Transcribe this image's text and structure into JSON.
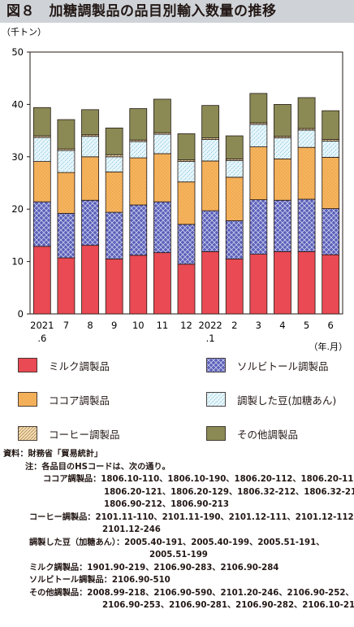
{
  "title": "図８　加糖調製品の品目別輸入数量の推移",
  "unit_label": "（千トン）",
  "x_unit_label": "（年.月）",
  "colors": {
    "milk": "#e94a53",
    "sorbitol": "#4e55b0",
    "cocoa": "#f6b45e",
    "prepared_beans": "#b9e3ef",
    "coffee": "#e9c78a",
    "other": "#8b8a55"
  },
  "chart_data": {
    "type": "bar",
    "stacked": true,
    "categories": [
      "2021\n.6",
      "7",
      "8",
      "9",
      "10",
      "11",
      "12",
      "2022\n.1",
      "2",
      "3",
      "4",
      "5",
      "6"
    ],
    "ylim": [
      0,
      50
    ],
    "yticks": [
      0,
      10,
      20,
      30,
      40,
      50
    ],
    "ylabel": "（千トン）",
    "xlabel": "（年.月）",
    "grid": false,
    "legend_position": "bottom",
    "series": [
      {
        "name": "ミルク調製品",
        "key": "milk",
        "values": [
          12.9,
          10.7,
          13.1,
          10.5,
          11.2,
          11.7,
          9.5,
          11.9,
          10.5,
          11.4,
          11.9,
          11.9,
          11.3
        ]
      },
      {
        "name": "ソルビトール調製品",
        "key": "sorbitol",
        "values": [
          8.5,
          8.5,
          8.6,
          8.9,
          9.6,
          9.7,
          7.6,
          7.8,
          7.3,
          10.4,
          9.8,
          10.0,
          8.8
        ]
      },
      {
        "name": "ココア調製品",
        "key": "cocoa",
        "values": [
          7.7,
          7.8,
          8.3,
          7.7,
          9.0,
          9.2,
          8.1,
          9.5,
          8.3,
          10.1,
          7.9,
          9.9,
          9.8
        ]
      },
      {
        "name": "調製した豆(加糖あん)",
        "key": "prepared_beans",
        "values": [
          4.6,
          4.2,
          3.9,
          2.9,
          3.1,
          3.7,
          3.9,
          4.1,
          3.2,
          4.3,
          4.0,
          3.3,
          3.1
        ]
      },
      {
        "name": "コーヒー調製品",
        "key": "coffee",
        "values": [
          0.3,
          0.3,
          0.3,
          0.4,
          0.3,
          0.3,
          0.3,
          0.3,
          0.3,
          0.3,
          0.3,
          0.3,
          0.3
        ]
      },
      {
        "name": "その他調製品",
        "key": "other",
        "values": [
          5.4,
          5.6,
          4.8,
          5.1,
          6.0,
          6.4,
          5.0,
          6.2,
          4.4,
          5.6,
          6.1,
          5.9,
          5.5
        ]
      }
    ]
  },
  "legend": [
    {
      "label": "ミルク調製品",
      "key": "milk"
    },
    {
      "label": "ソルビトール調製品",
      "key": "sorbitol"
    },
    {
      "label": "ココア調製品",
      "key": "cocoa"
    },
    {
      "label": "調製した豆(加糖あん)",
      "key": "prepared_beans"
    },
    {
      "label": "コーヒー調製品",
      "key": "coffee"
    },
    {
      "label": "その他調製品",
      "key": "other"
    }
  ],
  "notes": {
    "source": "資料：財務省「貿易統計」",
    "note_head": "注：各品目のHSコードは、次の通り。",
    "cocoa_1": "ココア調製品：1806.10-110、1806.10-190、1806.20-112、1806.20-113、",
    "cocoa_2": "1806.20-121、1806.20-129、1806.32-212、1806.32-213、",
    "cocoa_3": "1806.90-212、1806.90-213",
    "coffee_1": "コーヒー調製品：2101.11-110、2101.11-190、2101.12-111、2101.12-112、",
    "coffee_2": "2101.12-246",
    "beans_1": "調製した豆（加糖あん）：2005.40-191、2005.40-199、2005.51-191、",
    "beans_2": "2005.51-199",
    "milk_1": "ミルク調製品：1901.90-219、2106.90-283、2106.90-284",
    "sorbitol_1": "ソルビトール調製品：2106.90-510",
    "other_1": "その他調製品：2008.99-218、2106.90-590、2101.20-246、2106.90-252、",
    "other_2": "2106.90-253、2106.90-281、2106.90-282、2106.10-219"
  }
}
